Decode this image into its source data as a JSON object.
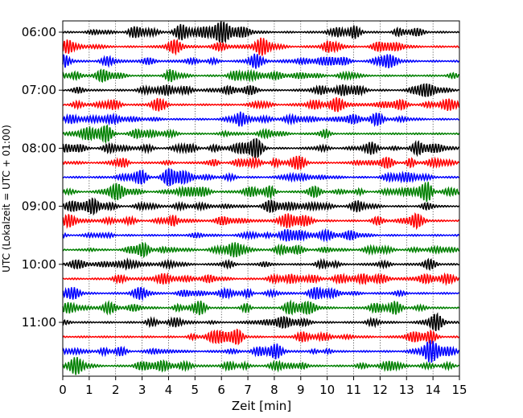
{
  "chart_data": {
    "type": "line",
    "title": "",
    "xlabel": "Zeit  [min]",
    "ylabel": "UTC (Lokalzeit = UTC + 01:00)",
    "xlim": [
      0,
      15
    ],
    "x_ticks": [
      "0",
      "1",
      "2",
      "3",
      "4",
      "5",
      "6",
      "7",
      "8",
      "9",
      "10",
      "11",
      "12",
      "13",
      "14",
      "15"
    ],
    "y_tick_labels": [
      "06:00",
      "07:00",
      "08:00",
      "09:00",
      "10:00",
      "11:00"
    ],
    "grid": "vertical dotted",
    "trace_colors": [
      "#000000",
      "#ff0000",
      "#0000ff",
      "#008000"
    ],
    "traces": [
      {
        "start": "06:00",
        "color": "#000000"
      },
      {
        "start": "06:15",
        "color": "#ff0000"
      },
      {
        "start": "06:30",
        "color": "#0000ff"
      },
      {
        "start": "06:45",
        "color": "#008000"
      },
      {
        "start": "07:00",
        "color": "#000000"
      },
      {
        "start": "07:15",
        "color": "#ff0000"
      },
      {
        "start": "07:30",
        "color": "#0000ff"
      },
      {
        "start": "07:45",
        "color": "#008000"
      },
      {
        "start": "08:00",
        "color": "#000000"
      },
      {
        "start": "08:15",
        "color": "#ff0000"
      },
      {
        "start": "08:30",
        "color": "#0000ff"
      },
      {
        "start": "08:45",
        "color": "#008000"
      },
      {
        "start": "09:00",
        "color": "#000000"
      },
      {
        "start": "09:15",
        "color": "#ff0000"
      },
      {
        "start": "09:30",
        "color": "#0000ff"
      },
      {
        "start": "09:45",
        "color": "#008000"
      },
      {
        "start": "10:00",
        "color": "#000000"
      },
      {
        "start": "10:15",
        "color": "#ff0000"
      },
      {
        "start": "10:30",
        "color": "#0000ff"
      },
      {
        "start": "10:45",
        "color": "#008000"
      },
      {
        "start": "11:00",
        "color": "#000000"
      },
      {
        "start": "11:15",
        "color": "#ff0000"
      },
      {
        "start": "11:30",
        "color": "#0000ff"
      },
      {
        "start": "11:45",
        "color": "#008000"
      }
    ]
  }
}
